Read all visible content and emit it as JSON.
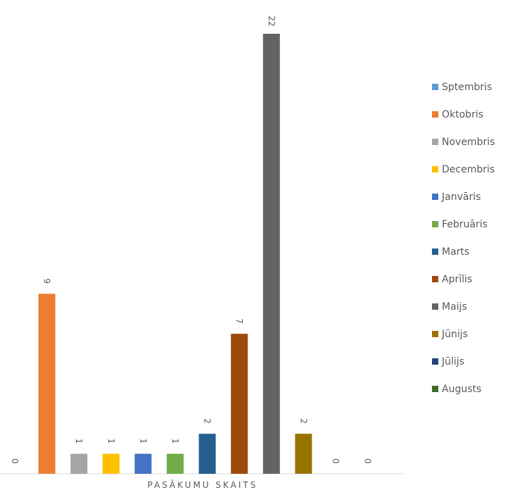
{
  "chart_data": {
    "type": "bar",
    "categories": [
      "Sptembris",
      "Oktobris",
      "Novembris",
      "Decembris",
      "Janvāris",
      "Februāris",
      "Marts",
      "Aprīlis",
      "Maijs",
      "Jūnijs",
      "Jūlijs",
      "Augusts"
    ],
    "values": [
      0,
      9,
      1,
      1,
      1,
      1,
      2,
      7,
      22,
      2,
      0,
      0
    ],
    "colors": [
      "#5b9bd5",
      "#ed7d31",
      "#a5a5a5",
      "#ffc000",
      "#4472c4",
      "#70ad47",
      "#255e91",
      "#9e480e",
      "#636363",
      "#997300",
      "#264478",
      "#43682b"
    ],
    "xlabel": "PASĀKUMU SKAITS",
    "ylim": [
      0,
      22
    ],
    "grid": false,
    "legend_position": "right"
  }
}
